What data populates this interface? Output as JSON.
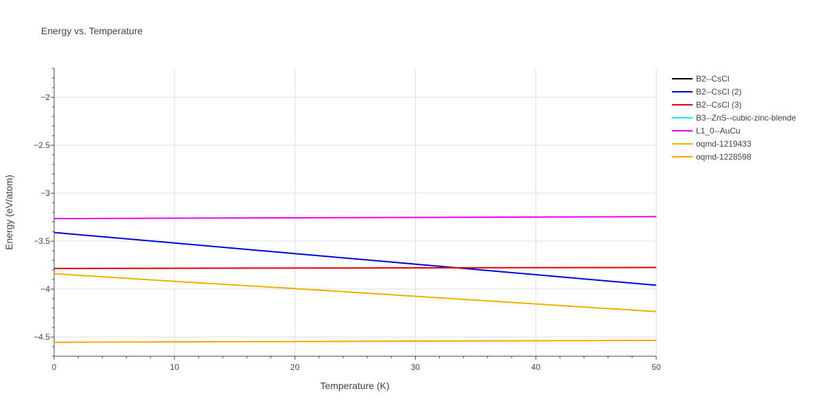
{
  "chart_data": {
    "type": "line",
    "title": "Energy vs. Temperature",
    "xlabel": "Temperature (K)",
    "ylabel": "Energy (eV/atom)",
    "xlim": [
      0,
      50
    ],
    "ylim": [
      -4.7,
      -1.7
    ],
    "xticks": [
      0,
      10,
      20,
      30,
      40,
      50
    ],
    "xtick_labels": [
      "0",
      "10",
      "20",
      "30",
      "40",
      "50"
    ],
    "yticks": [
      -2,
      -2.5,
      -3,
      -3.5,
      -4,
      -4.5
    ],
    "ytick_labels": [
      "−2",
      "−2.5",
      "−3",
      "−3.5",
      "−4",
      "−4.5"
    ],
    "grid": true,
    "legend_position": "right",
    "series": [
      {
        "name": "B2--CsCl",
        "color": "#000000",
        "x": [],
        "y": []
      },
      {
        "name": "B2--CsCl (2)",
        "color": "#0000dd",
        "x": [
          0,
          10,
          20,
          30,
          40,
          50
        ],
        "y": [
          -3.41,
          -3.52,
          -3.63,
          -3.74,
          -3.85,
          -3.96
        ]
      },
      {
        "name": "B2--CsCl (3)",
        "color": "#dd0000",
        "x": [
          0,
          50
        ],
        "y": [
          -3.785,
          -3.775
        ]
      },
      {
        "name": "B3--ZnS--cubic-zinc-blende",
        "color": "#00eeee",
        "x": [],
        "y": []
      },
      {
        "name": "L1_0--AuCu",
        "color": "#ee00ee",
        "x": [
          0,
          50
        ],
        "y": [
          -3.265,
          -3.245
        ]
      },
      {
        "name": "oqmd-1219433",
        "color": "#ebb000",
        "x": [
          0,
          10,
          20,
          30,
          40,
          50
        ],
        "y": [
          -3.84,
          -3.92,
          -3.995,
          -4.075,
          -4.155,
          -4.235
        ]
      },
      {
        "name": "oqmd-1228598",
        "color": "#ffa500",
        "x": [
          0,
          50
        ],
        "y": [
          -4.555,
          -4.535
        ]
      }
    ]
  }
}
